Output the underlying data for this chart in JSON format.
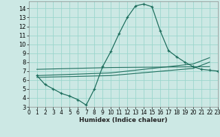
{
  "xlabel": "Humidex (Indice chaleur)",
  "background_color": "#cce8e4",
  "grid_color": "#99d5cc",
  "line_color": "#1a6b5a",
  "xlim": [
    0,
    23
  ],
  "ylim": [
    3,
    14.8
  ],
  "xticks": [
    0,
    1,
    2,
    3,
    4,
    5,
    6,
    7,
    8,
    9,
    10,
    11,
    12,
    13,
    14,
    15,
    16,
    17,
    18,
    19,
    20,
    21,
    22,
    23
  ],
  "yticks": [
    3,
    4,
    5,
    6,
    7,
    8,
    9,
    10,
    11,
    12,
    13,
    14
  ],
  "curve_x": [
    1,
    2,
    3,
    4,
    5,
    6,
    7,
    8,
    9,
    10,
    11,
    12,
    13,
    14,
    15,
    16,
    17,
    18,
    19,
    20,
    21,
    22,
    23
  ],
  "curve_y": [
    6.5,
    5.5,
    5.0,
    4.5,
    4.2,
    3.8,
    3.2,
    5.0,
    7.5,
    9.2,
    11.2,
    13.0,
    14.3,
    14.5,
    14.2,
    11.5,
    9.3,
    8.6,
    8.0,
    7.5,
    7.2,
    7.1,
    7.0
  ],
  "flat_line1_x": [
    1,
    10,
    22
  ],
  "flat_line1_y": [
    7.2,
    7.4,
    7.5
  ],
  "fan_line2_x": [
    1,
    10,
    20,
    22
  ],
  "fan_line2_y": [
    6.5,
    6.8,
    7.8,
    8.5
  ],
  "fan_line3_x": [
    1,
    10,
    20,
    22
  ],
  "fan_line3_y": [
    6.3,
    6.5,
    7.3,
    8.0
  ]
}
